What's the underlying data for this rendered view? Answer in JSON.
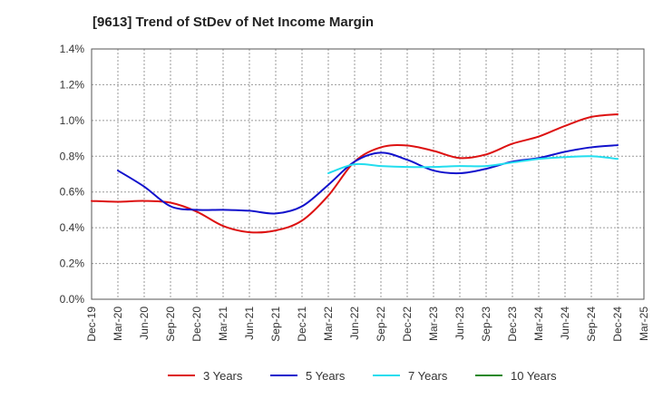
{
  "chart_data": {
    "type": "line",
    "title": "[9613]  Trend of StDev of Net Income Margin",
    "xlabel": "",
    "ylabel": "",
    "ylim": [
      0,
      1.4
    ],
    "yticks": [
      "0.0%",
      "0.2%",
      "0.4%",
      "0.6%",
      "0.8%",
      "1.0%",
      "1.2%",
      "1.4%"
    ],
    "ytick_values": [
      0,
      0.2,
      0.4,
      0.6,
      0.8,
      1.0,
      1.2,
      1.4
    ],
    "categories": [
      "Dec-19",
      "Mar-20",
      "Jun-20",
      "Sep-20",
      "Dec-20",
      "Mar-21",
      "Jun-21",
      "Sep-21",
      "Dec-21",
      "Mar-22",
      "Jun-22",
      "Sep-22",
      "Dec-22",
      "Mar-23",
      "Jun-23",
      "Sep-23",
      "Dec-23",
      "Mar-24",
      "Jun-24",
      "Sep-24",
      "Dec-24",
      "Mar-25"
    ],
    "grid": true,
    "legend_position": "bottom",
    "series": [
      {
        "name": "3 Years",
        "color": "#dd1111",
        "values": [
          0.55,
          0.545,
          0.55,
          0.54,
          0.49,
          0.41,
          0.375,
          0.385,
          0.44,
          0.58,
          0.77,
          0.85,
          0.86,
          0.83,
          0.79,
          0.81,
          0.87,
          0.91,
          0.97,
          1.02,
          1.035,
          null
        ]
      },
      {
        "name": "5 Years",
        "color": "#1111cc",
        "values": [
          null,
          0.72,
          0.63,
          0.52,
          0.5,
          0.5,
          0.495,
          0.48,
          0.52,
          0.64,
          0.77,
          0.82,
          0.78,
          0.72,
          0.705,
          0.73,
          0.77,
          0.79,
          0.825,
          0.85,
          0.862,
          null
        ]
      },
      {
        "name": "7 Years",
        "color": "#22ddee",
        "values": [
          null,
          null,
          null,
          null,
          null,
          null,
          null,
          null,
          null,
          0.705,
          0.755,
          0.745,
          0.74,
          0.74,
          0.745,
          0.745,
          0.765,
          0.785,
          0.795,
          0.8,
          0.785,
          null
        ]
      },
      {
        "name": "10 Years",
        "color": "#228822",
        "values": [
          null,
          null,
          null,
          null,
          null,
          null,
          null,
          null,
          null,
          null,
          null,
          null,
          null,
          null,
          null,
          null,
          null,
          null,
          null,
          null,
          null,
          null
        ]
      }
    ]
  }
}
